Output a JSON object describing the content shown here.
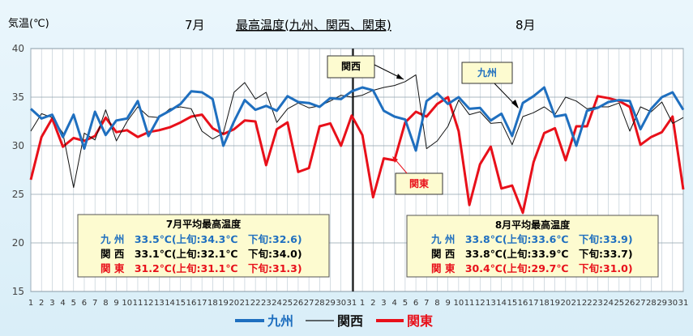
{
  "chart_data": {
    "type": "line",
    "title_ylabel": "気温(℃)",
    "title_left": "7月",
    "title_main": "最高温度(九州、関西、関東)",
    "title_right": "8月",
    "ylim": [
      15,
      40
    ],
    "yticks": [
      "15",
      "20",
      "25",
      "30",
      "35",
      "40"
    ],
    "x": [
      "1",
      "2",
      "3",
      "4",
      "5",
      "6",
      "7",
      "8",
      "9",
      "10",
      "11",
      "12",
      "13",
      "14",
      "15",
      "16",
      "17",
      "18",
      "19",
      "20",
      "21",
      "22",
      "23",
      "24",
      "25",
      "26",
      "27",
      "28",
      "29",
      "30",
      "31",
      "1",
      "2",
      "3",
      "4",
      "5",
      "6",
      "7",
      "8",
      "9",
      "10",
      "11",
      "12",
      "13",
      "14",
      "15",
      "16",
      "17",
      "18",
      "19",
      "20",
      "21",
      "22",
      "23",
      "24",
      "25",
      "26",
      "27",
      "28",
      "29",
      "30",
      "31"
    ],
    "grid": true,
    "series": [
      {
        "name": "九州",
        "color": "#1f6fbf",
        "values": [
          33.8,
          32.8,
          33.2,
          30.9,
          33.2,
          29.7,
          33.5,
          31.1,
          32.6,
          32.8,
          34.6,
          31.0,
          33.0,
          33.6,
          34.3,
          35.6,
          35.5,
          34.8,
          30.0,
          32.5,
          34.7,
          33.7,
          34.1,
          33.6,
          35.1,
          34.5,
          34.4,
          34.0,
          34.9,
          34.8,
          35.6,
          36.0,
          35.7,
          33.6,
          33.0,
          32.7,
          29.5,
          34.6,
          35.4,
          34.3,
          35.0,
          33.8,
          33.9,
          32.6,
          33.3,
          31.0,
          34.4,
          35.1,
          36.0,
          33.0,
          33.2,
          30.0,
          33.6,
          33.9,
          34.5,
          34.7,
          34.6,
          31.7,
          33.8,
          35.0,
          35.5,
          33.7
        ]
      },
      {
        "name": "関西",
        "color": "#111111",
        "values": [
          31.5,
          33.3,
          32.9,
          31.3,
          25.7,
          31.3,
          30.6,
          33.7,
          30.5,
          32.5,
          34.0,
          33.0,
          32.9,
          33.8,
          34.0,
          33.8,
          31.5,
          30.7,
          31.3,
          35.5,
          36.5,
          34.8,
          35.5,
          32.4,
          33.8,
          34.4,
          33.9,
          34.1,
          34.6,
          35.2,
          35.0,
          35.2,
          35.7,
          36.0,
          36.2,
          36.6,
          37.3,
          29.7,
          30.5,
          32.0,
          34.7,
          33.2,
          33.5,
          32.3,
          32.4,
          30.1,
          33.0,
          33.4,
          34.0,
          33.2,
          35.0,
          34.6,
          33.8,
          34.0,
          34.0,
          34.4,
          31.5,
          34.0,
          33.5,
          34.5,
          32.3,
          32.9
        ]
      },
      {
        "name": "関東",
        "color": "#e8101a",
        "values": [
          26.5,
          30.9,
          32.8,
          29.9,
          30.8,
          30.5,
          31.0,
          32.9,
          31.4,
          31.6,
          30.9,
          31.4,
          31.6,
          31.9,
          32.4,
          33.0,
          33.2,
          31.8,
          31.2,
          31.7,
          32.6,
          32.5,
          28.0,
          31.7,
          32.4,
          27.3,
          27.7,
          32.0,
          32.3,
          30.0,
          33.1,
          31.1,
          24.7,
          28.7,
          28.5,
          32.4,
          33.5,
          33.0,
          34.3,
          35.0,
          31.5,
          23.9,
          28.1,
          29.9,
          25.6,
          25.9,
          23.1,
          28.3,
          31.3,
          31.8,
          28.5,
          32.0,
          32.0,
          35.1,
          34.9,
          34.6,
          34.0,
          30.1,
          30.9,
          31.4,
          33.0,
          25.5
        ]
      }
    ],
    "annotations": [
      {
        "label": "関西",
        "color": "#000000"
      },
      {
        "label": "九州",
        "color": "#1f6fbf"
      },
      {
        "label": "関東",
        "color": "#e8101a"
      }
    ],
    "summary_boxes": [
      {
        "title": "7月平均最高温度",
        "rows": [
          {
            "color": "#1f6fbf",
            "text": "九 州　33.5℃(上旬:34.3℃　下旬:32.6)"
          },
          {
            "color": "#000000",
            "text": "関 西　33.1℃(上旬:32.1℃　下旬:34.0)"
          },
          {
            "color": "#e8101a",
            "text": "関 東　31.2℃(上旬:31.1℃　下旬:31.3)"
          }
        ]
      },
      {
        "title": "8月平均最高温度",
        "rows": [
          {
            "color": "#1f6fbf",
            "text": "九 州　33.8℃(上旬:33.6℃　下旬:33.9)"
          },
          {
            "color": "#000000",
            "text": "関 西　33.8℃(上旬:33.9℃　下旬:33.7)"
          },
          {
            "color": "#e8101a",
            "text": "関 東　30.4℃(上旬:29.7℃　下旬:31.0)"
          }
        ]
      }
    ],
    "legend": {
      "position": "bottom",
      "items": [
        {
          "label": "九州",
          "color": "#1f6fbf"
        },
        {
          "label": "関西",
          "color": "#111111"
        },
        {
          "label": "関東",
          "color": "#e8101a"
        }
      ]
    }
  }
}
